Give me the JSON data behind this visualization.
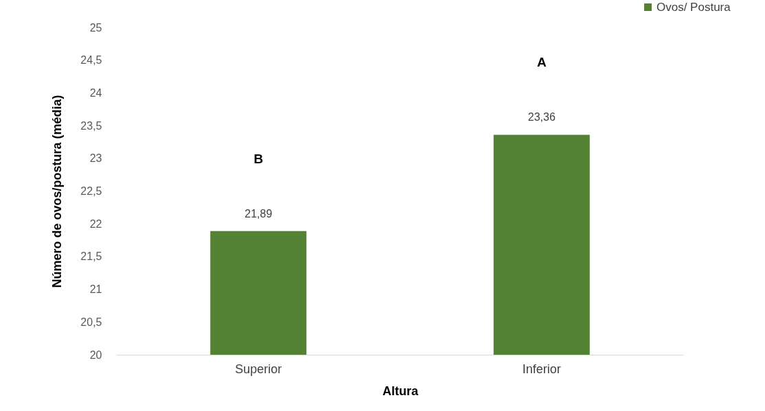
{
  "chart_data": {
    "type": "bar",
    "xlabel": "Altura",
    "ylabel": "Número de ovos/postura (média)",
    "categories": [
      "Superior",
      "Inferior"
    ],
    "series": [
      {
        "name": "Ovos/ Postura",
        "color": "#548235",
        "values": [
          21.89,
          23.36
        ],
        "value_labels": [
          "21,89",
          "23,36"
        ]
      }
    ],
    "ylim": [
      20,
      25
    ],
    "yticks": [
      20,
      {
        "value": 20.5,
        "label": "20,5"
      },
      21,
      {
        "value": 21.5,
        "label": "21,5"
      },
      22,
      {
        "value": 22.5,
        "label": "22,5"
      },
      23,
      {
        "value": 23.5,
        "label": "23,5"
      },
      24,
      {
        "value": 24.5,
        "label": "24,5"
      },
      25
    ],
    "annotations": [
      "B",
      "A"
    ],
    "legend": "top right"
  }
}
